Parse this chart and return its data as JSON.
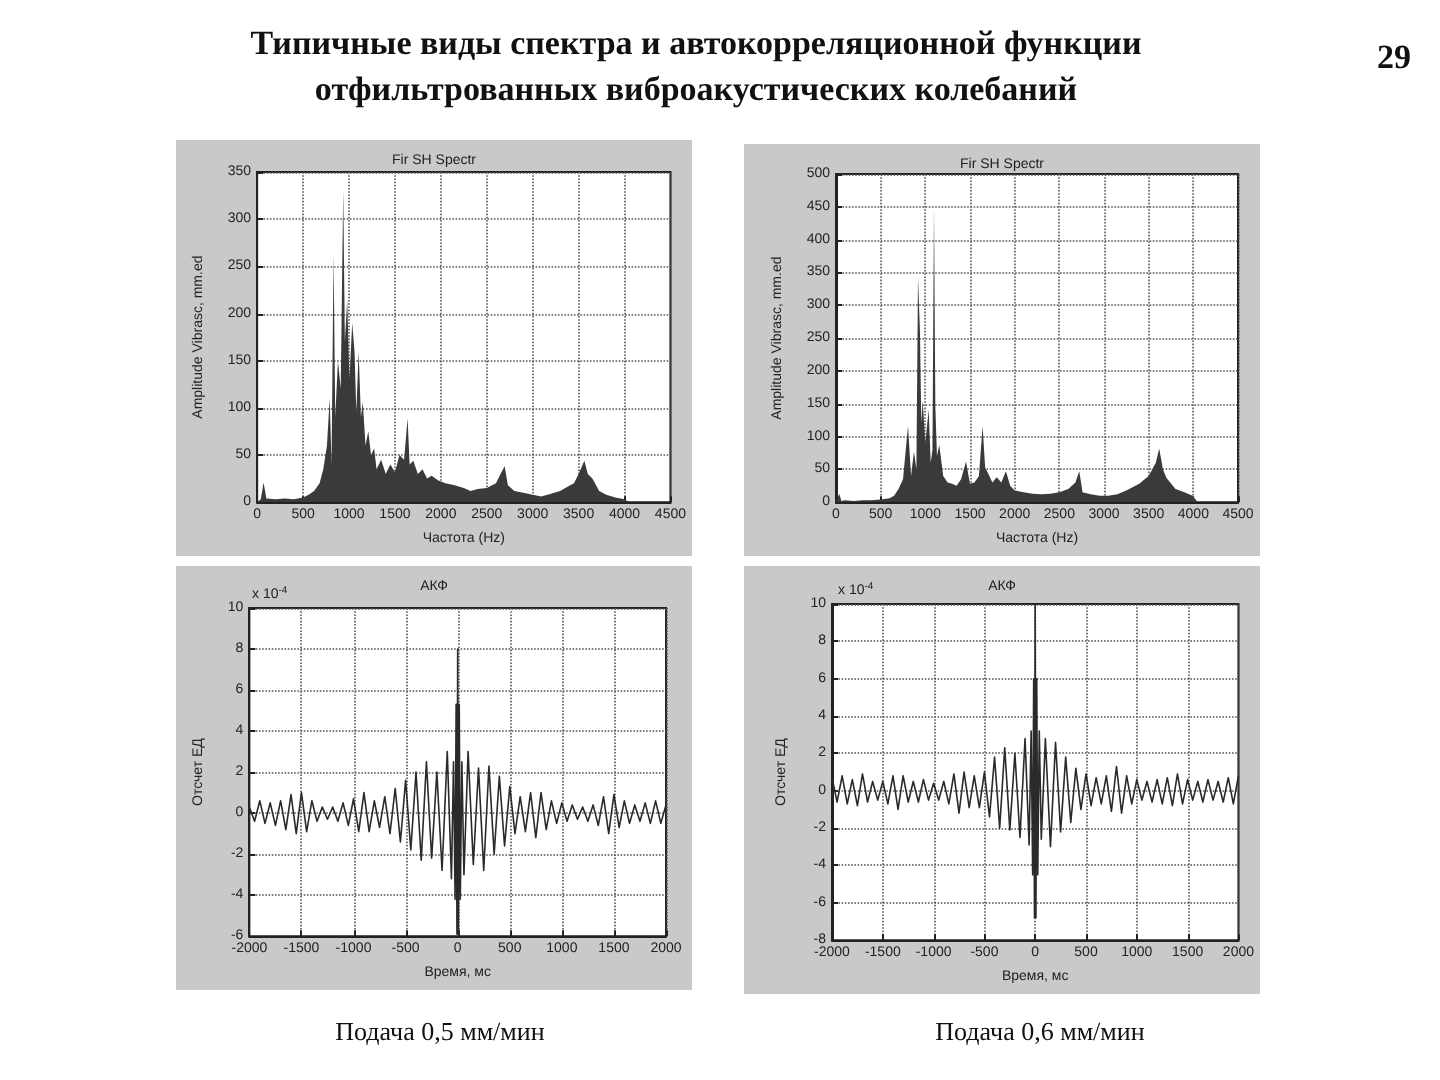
{
  "chart_data": [
    {
      "type": "area",
      "title": "Типичные виды спектра и автокорреляционной функции отфильтрованных виброакустических колебаний",
      "subtitle": "Fir SH Spectr",
      "xlabel": "Частота (Hz)",
      "ylabel": "Amplitude Vibrasc, mm.ed",
      "color": "#3a3a3a",
      "grid": true,
      "xlim": [
        0,
        4500
      ],
      "xticks": [
        0,
        500,
        1000,
        1500,
        2000,
        2500,
        3000,
        3500,
        4000,
        4500
      ],
      "ylim": [
        0,
        350
      ],
      "yticks": [
        0,
        50,
        100,
        150,
        200,
        250,
        300,
        350
      ],
      "x": [
        0,
        40,
        70,
        100,
        200,
        300,
        400,
        500,
        560,
        620,
        680,
        720,
        760,
        790,
        810,
        832,
        850,
        880,
        910,
        937,
        955,
        980,
        1005,
        1035,
        1060,
        1080,
        1105,
        1130,
        1150,
        1180,
        1210,
        1240,
        1274,
        1300,
        1350,
        1400,
        1450,
        1500,
        1550,
        1600,
        1638,
        1660,
        1700,
        1750,
        1800,
        1850,
        1900,
        1972,
        2050,
        2150,
        2250,
        2324,
        2400,
        2500,
        2600,
        2650,
        2695,
        2730,
        2800,
        2900,
        3000,
        3094,
        3200,
        3300,
        3374,
        3450,
        3500,
        3563,
        3600,
        3650,
        3724,
        3800,
        3900,
        4000,
        4050
      ],
      "values": [
        0,
        3,
        21,
        4,
        3,
        4,
        3,
        5,
        8,
        12,
        20,
        35,
        60,
        110,
        40,
        264,
        90,
        150,
        120,
        331,
        170,
        214,
        130,
        190,
        160,
        95,
        160,
        90,
        106,
        60,
        75,
        50,
        57,
        35,
        45,
        30,
        40,
        32,
        50,
        45,
        89,
        40,
        44,
        30,
        35,
        25,
        28,
        23,
        20,
        18,
        15,
        12,
        14,
        15,
        20,
        30,
        38,
        18,
        12,
        10,
        8,
        6,
        9,
        12,
        16,
        20,
        30,
        44,
        30,
        25,
        12,
        8,
        5,
        3,
        0
      ]
    },
    {
      "type": "area",
      "title": "Fir SH Spectr",
      "xlabel": "Частота (Hz)",
      "ylabel": "Amplitude Vibrasc, mm.ed",
      "color": "#3a3a3a",
      "grid": true,
      "xlim": [
        0,
        4500
      ],
      "xticks": [
        0,
        500,
        1000,
        1500,
        2000,
        2500,
        3000,
        3500,
        4000,
        4500
      ],
      "ylim": [
        0,
        500
      ],
      "yticks": [
        0,
        50,
        100,
        150,
        200,
        250,
        300,
        350,
        400,
        450,
        500
      ],
      "annotations": [
        "29"
      ],
      "x": [
        0,
        37,
        60,
        100,
        200,
        300,
        400,
        500,
        600,
        650,
        700,
        750,
        806,
        840,
        873,
        900,
        918,
        940,
        955,
        970,
        1000,
        1037,
        1060,
        1080,
        1097,
        1112,
        1130,
        1156,
        1200,
        1250,
        1300,
        1350,
        1400,
        1455,
        1500,
        1550,
        1600,
        1641,
        1670,
        1700,
        1750,
        1800,
        1850,
        1902,
        1950,
        2000,
        2100,
        2200,
        2300,
        2400,
        2500,
        2600,
        2680,
        2723,
        2760,
        2850,
        2950,
        3050,
        3150,
        3250,
        3394,
        3500,
        3580,
        3618,
        3660,
        3700,
        3800,
        3900,
        3991,
        4050
      ],
      "values": [
        0,
        13,
        2,
        3,
        2,
        3,
        3,
        4,
        6,
        10,
        20,
        35,
        116,
        40,
        77,
        50,
        343,
        259,
        120,
        155,
        90,
        141,
        60,
        80,
        451,
        146,
        70,
        87,
        40,
        30,
        28,
        25,
        35,
        62,
        28,
        30,
        40,
        116,
        52,
        45,
        30,
        38,
        30,
        47,
        25,
        18,
        15,
        13,
        12,
        13,
        15,
        20,
        30,
        47,
        15,
        12,
        10,
        10,
        12,
        18,
        28,
        40,
        60,
        82,
        50,
        37,
        20,
        15,
        10,
        0
      ]
    },
    {
      "type": "line",
      "title": "АКФ",
      "xlabel": "Время, мс",
      "ylabel": "Отсчет ЕД",
      "color": "#2a2a2a",
      "grid": true,
      "xlim": [
        -2000,
        2000
      ],
      "xticks": [
        -2000,
        -1500,
        -1000,
        -500,
        0,
        500,
        1000,
        1500,
        2000
      ],
      "ylim": [
        -6,
        10
      ],
      "yticks": [
        -6,
        -4,
        -2,
        0,
        2,
        4,
        6,
        8,
        10
      ],
      "annotations": [
        "x 10$^{-4}$",
        "Подача 0,5 мм/мин"
      ],
      "x": [
        -2000,
        -1950,
        -1900,
        -1850,
        -1800,
        -1750,
        -1700,
        -1650,
        -1600,
        -1550,
        -1500,
        -1450,
        -1400,
        -1350,
        -1300,
        -1250,
        -1200,
        -1150,
        -1100,
        -1050,
        -1000,
        -950,
        -900,
        -850,
        -800,
        -750,
        -700,
        -650,
        -600,
        -550,
        -500,
        -450,
        -400,
        -350,
        -300,
        -250,
        -200,
        -150,
        -100,
        -60,
        -40,
        -25,
        -15,
        -7,
        0,
        7,
        15,
        25,
        40,
        60,
        100,
        150,
        200,
        250,
        300,
        350,
        400,
        450,
        500,
        550,
        600,
        650,
        700,
        750,
        800,
        850,
        900,
        950,
        1000,
        1050,
        1100,
        1150,
        1200,
        1250,
        1300,
        1350,
        1400,
        1450,
        1500,
        1550,
        1600,
        1650,
        1700,
        1750,
        1800,
        1850,
        1900,
        1950,
        2000
      ],
      "values": [
        0.3,
        -0.4,
        0.6,
        -0.5,
        0.5,
        -0.6,
        0.6,
        -0.8,
        0.9,
        -1.0,
        1.0,
        -0.9,
        0.6,
        -0.4,
        0.3,
        -0.3,
        0.3,
        -0.4,
        0.5,
        -0.6,
        0.7,
        -0.9,
        1.0,
        -0.9,
        0.6,
        -0.7,
        0.8,
        -1.0,
        1.2,
        -1.4,
        1.6,
        -1.8,
        2.0,
        -2.3,
        2.5,
        -2.2,
        2.0,
        -2.8,
        3.0,
        -3.2,
        2.5,
        -4.2,
        5.3,
        -5.9,
        8,
        -5.9,
        5.3,
        -4.2,
        2.5,
        -3.0,
        3.0,
        -2.5,
        2.2,
        -2.8,
        2.3,
        -2.0,
        1.8,
        -1.6,
        1.3,
        -1.0,
        0.8,
        -0.9,
        1.0,
        -1.2,
        1.0,
        -0.8,
        0.6,
        -0.5,
        0.5,
        -0.4,
        0.4,
        -0.3,
        0.3,
        -0.4,
        0.4,
        -0.6,
        0.8,
        -1.0,
        0.9,
        -0.7,
        0.6,
        -0.5,
        0.4,
        -0.4,
        0.5,
        -0.5,
        0.6,
        -0.5,
        0.4
      ]
    },
    {
      "type": "line",
      "title": "АКФ",
      "xlabel": "Время, мс",
      "ylabel": "Отсчет ЕД",
      "color": "#2a2a2a",
      "grid": true,
      "xlim": [
        -2000,
        2000
      ],
      "xticks": [
        -2000,
        -1500,
        -1000,
        -500,
        0,
        500,
        1000,
        1500,
        2000
      ],
      "ylim": [
        -8,
        10
      ],
      "yticks": [
        -8,
        -6,
        -4,
        -2,
        0,
        2,
        4,
        6,
        8,
        10
      ],
      "annotations": [
        "x 10$^{-4}$",
        "Подача 0,6 мм/мин"
      ],
      "x": [
        -2000,
        -1950,
        -1900,
        -1850,
        -1800,
        -1750,
        -1700,
        -1650,
        -1600,
        -1550,
        -1500,
        -1450,
        -1400,
        -1350,
        -1300,
        -1250,
        -1200,
        -1150,
        -1100,
        -1050,
        -1000,
        -950,
        -900,
        -850,
        -800,
        -750,
        -700,
        -650,
        -600,
        -550,
        -500,
        -450,
        -400,
        -350,
        -300,
        -250,
        -200,
        -150,
        -100,
        -60,
        -40,
        -25,
        -15,
        -7,
        0,
        7,
        15,
        25,
        40,
        60,
        100,
        150,
        200,
        250,
        300,
        350,
        400,
        450,
        500,
        550,
        600,
        650,
        700,
        750,
        800,
        850,
        900,
        950,
        1000,
        1050,
        1100,
        1150,
        1200,
        1250,
        1300,
        1350,
        1400,
        1450,
        1500,
        1550,
        1600,
        1650,
        1700,
        1750,
        1800,
        1850,
        1900,
        1950,
        2000
      ],
      "values": [
        0.7,
        -0.6,
        0.8,
        -0.7,
        0.6,
        -0.8,
        0.9,
        -0.6,
        0.5,
        -0.5,
        0.5,
        -0.7,
        0.8,
        -1.0,
        0.8,
        -0.6,
        0.5,
        -0.6,
        0.6,
        -0.5,
        0.4,
        -0.5,
        0.5,
        -0.7,
        0.9,
        -1.2,
        1.0,
        -0.9,
        0.8,
        -0.9,
        1.0,
        -1.4,
        1.8,
        -2.0,
        2.3,
        -2.1,
        2.0,
        -2.5,
        2.8,
        -2.9,
        3.2,
        -4.5,
        6,
        -6.8,
        10,
        -6.8,
        6,
        -4.5,
        3.2,
        -2.6,
        2.8,
        -3.0,
        2.6,
        -2.2,
        1.8,
        -1.7,
        1.2,
        -1.0,
        0.9,
        -0.8,
        0.7,
        -0.7,
        0.8,
        -1.1,
        1.3,
        -1.2,
        0.8,
        -0.7,
        0.6,
        -0.5,
        0.5,
        -0.6,
        0.6,
        -0.7,
        0.7,
        -0.8,
        0.9,
        -0.7,
        0.6,
        -0.5,
        0.5,
        -0.6,
        0.6,
        -0.5,
        0.5,
        -0.6,
        0.7,
        -0.7,
        0.8
      ]
    }
  ]
}
